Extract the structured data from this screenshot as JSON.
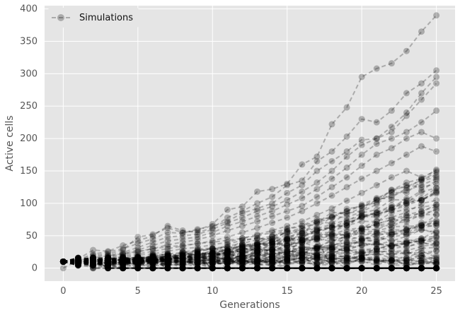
{
  "chart_data": {
    "type": "line",
    "xlabel": "Generations",
    "ylabel": "Active cells",
    "xlim": [
      -1.25,
      26.25
    ],
    "ylim": [
      -20,
      405
    ],
    "x_ticks": [
      0,
      5,
      10,
      15,
      20,
      25
    ],
    "y_ticks": [
      0,
      50,
      100,
      150,
      200,
      250,
      300,
      350,
      400
    ],
    "grid": true,
    "legend": {
      "placement": "top-left",
      "entries": [
        "Simulations"
      ]
    },
    "style": {
      "line": "dashed",
      "marker": "circle",
      "color": "#000000",
      "alpha": 0.25,
      "background": "#e5e5e5"
    },
    "x": [
      0,
      1,
      2,
      3,
      4,
      5,
      6,
      7,
      8,
      9,
      10,
      11,
      12,
      13,
      14,
      15,
      16,
      17,
      18,
      19,
      20,
      21,
      22,
      23,
      24,
      25
    ],
    "series": [
      {
        "values": [
          10,
          12,
          20,
          22,
          28,
          48,
          52,
          62,
          55,
          58,
          68,
          90,
          95,
          118,
          122,
          130,
          160,
          172,
          222,
          248,
          295,
          308,
          316,
          335,
          365,
          390
        ]
      },
      {
        "values": [
          10,
          14,
          28,
          26,
          35,
          42,
          50,
          65,
          58,
          55,
          62,
          78,
          88,
          100,
          110,
          128,
          135,
          165,
          180,
          203,
          230,
          225,
          243,
          270,
          285,
          305
        ]
      },
      {
        "values": [
          10,
          13,
          22,
          25,
          30,
          38,
          45,
          55,
          54,
          60,
          65,
          72,
          85,
          92,
          100,
          116,
          128,
          150,
          165,
          180,
          198,
          200,
          218,
          240,
          270,
          295
        ]
      },
      {
        "values": [
          10,
          11,
          18,
          20,
          24,
          32,
          40,
          48,
          50,
          52,
          60,
          70,
          78,
          88,
          95,
          105,
          118,
          132,
          150,
          172,
          190,
          200,
          210,
          235,
          260,
          285
        ]
      },
      {
        "values": [
          10,
          12,
          15,
          18,
          22,
          28,
          35,
          42,
          45,
          48,
          55,
          65,
          72,
          80,
          88,
          98,
          108,
          122,
          138,
          155,
          175,
          192,
          200,
          210,
          225,
          243
        ]
      },
      {
        "values": [
          10,
          10,
          14,
          17,
          20,
          25,
          30,
          36,
          40,
          44,
          50,
          58,
          65,
          72,
          80,
          88,
          96,
          110,
          125,
          140,
          158,
          175,
          185,
          200,
          210,
          200
        ]
      },
      {
        "values": [
          10,
          11,
          12,
          15,
          18,
          22,
          26,
          30,
          34,
          38,
          42,
          48,
          55,
          62,
          70,
          78,
          88,
          100,
          112,
          125,
          138,
          150,
          162,
          175,
          188,
          180
        ]
      },
      {
        "values": [
          10,
          10,
          12,
          13,
          16,
          20,
          22,
          26,
          30,
          32,
          36,
          40,
          46,
          52,
          58,
          65,
          72,
          82,
          92,
          104,
          116,
          128,
          140,
          150,
          140,
          150
        ]
      },
      {
        "values": [
          10,
          9,
          10,
          12,
          14,
          16,
          18,
          22,
          24,
          26,
          30,
          34,
          38,
          44,
          50,
          56,
          62,
          70,
          78,
          88,
          98,
          108,
          118,
          128,
          125,
          130
        ]
      },
      {
        "values": [
          10,
          8,
          8,
          10,
          12,
          14,
          16,
          18,
          20,
          22,
          25,
          28,
          32,
          36,
          40,
          45,
          50,
          56,
          62,
          70,
          78,
          86,
          94,
          100,
          105,
          115
        ]
      },
      {
        "values": [
          10,
          7,
          6,
          8,
          9,
          10,
          12,
          14,
          15,
          17,
          19,
          22,
          25,
          28,
          32,
          36,
          40,
          45,
          50,
          56,
          62,
          68,
          75,
          82,
          88,
          95
        ]
      },
      {
        "values": [
          10,
          6,
          5,
          5,
          6,
          7,
          8,
          9,
          10,
          11,
          13,
          15,
          17,
          19,
          22,
          25,
          28,
          32,
          36,
          40,
          45,
          50,
          55,
          60,
          66,
          72
        ]
      },
      {
        "values": [
          10,
          5,
          4,
          3,
          3,
          4,
          4,
          5,
          5,
          6,
          7,
          8,
          9,
          10,
          12,
          14,
          16,
          18,
          20,
          23,
          26,
          30,
          34,
          38,
          42,
          48
        ]
      },
      {
        "values": [
          10,
          4,
          2,
          1,
          0,
          0,
          0,
          0,
          0,
          0,
          0,
          0,
          0,
          0,
          0,
          0,
          0,
          0,
          0,
          0,
          0,
          0,
          0,
          0,
          0,
          0
        ]
      },
      {
        "values": [
          0,
          12,
          16,
          19,
          22,
          26,
          30,
          33,
          35,
          38,
          40,
          43,
          46,
          50,
          55,
          60,
          65,
          72,
          80,
          88,
          96,
          105,
          112,
          120,
          128,
          138
        ]
      }
    ],
    "note_cloud": "dense overlapping simulations fill roughly 0-60 at generation 10 and 0-150 at generation 25"
  }
}
